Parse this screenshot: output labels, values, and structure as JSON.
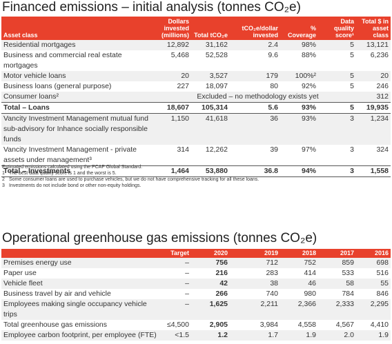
{
  "financed": {
    "title": "Financed emissions – initial analysis (tonnes CO₂e)",
    "columns": [
      "Asset class",
      "Dollars invested (millions)",
      "Total tCO₂e",
      "tCO₂e/dollar invested",
      "% Coverage",
      "Data quality score¹",
      "Total $ in asset class"
    ],
    "sections": [
      {
        "rows": [
          [
            "Residential mortgages",
            "12,892",
            "31,162",
            "2.4",
            "98%",
            "5",
            "13,121"
          ],
          [
            "Business and commercial real estate mortgages",
            "5,468",
            "52,528",
            "9.6",
            "88%",
            "5",
            "6,236"
          ],
          [
            "Motor vehicle loans",
            "20",
            "3,527",
            "179",
            "100%²",
            "5",
            "20"
          ],
          [
            "Business loans (general purpose)",
            "227",
            "18,097",
            "80",
            "92%",
            "5",
            "246"
          ],
          [
            "Consumer loans²",
            "Excluded – no methodology exists yet",
            "312"
          ]
        ],
        "total": [
          "Total – Loans",
          "18,607",
          "105,314",
          "5.6",
          "93%",
          "5",
          "19,935"
        ]
      },
      {
        "rows": [
          [
            "Vancity Investment Management mutual fund sub-advisory for Inhance socially responsible funds",
            "1,150",
            "41,618",
            "36",
            "93%",
            "3",
            "1,234"
          ],
          [
            "Vancity Investment Management - private assets under management³",
            "314",
            "12,262",
            "39",
            "97%",
            "3",
            "324"
          ]
        ],
        "total": [
          "Total – Investments",
          "1,464",
          "53,880",
          "36.8",
          "94%",
          "3",
          "1,558"
        ]
      }
    ]
  },
  "notes": {
    "intro": "Estimated emissions calculated using the PCAF Global Standard.",
    "items": [
      {
        "num": "1",
        "text": "The best data quality score is 1 and the worst is 5."
      },
      {
        "num": "2",
        "text": "Some consumer loans are used to purchase vehicles, but we do not have comprehensive tracking for all these loans."
      },
      {
        "num": "3",
        "text": "Investments do not include bond or other non-equity holdings."
      }
    ]
  },
  "operational": {
    "title": "Operational greenhouse gas emissions (tonnes CO₂e)",
    "columns": [
      "",
      "Target",
      "2020",
      "2019",
      "2018",
      "2017",
      "2016"
    ],
    "rows": [
      [
        "Premises energy use",
        "–",
        "756",
        "712",
        "752",
        "859",
        "698"
      ],
      [
        "Paper use",
        "–",
        "216",
        "283",
        "414",
        "533",
        "516"
      ],
      [
        "Vehicle fleet",
        "–",
        "42",
        "38",
        "46",
        "58",
        "55"
      ],
      [
        "Business travel by air and vehicle",
        "–",
        "266",
        "740",
        "980",
        "784",
        "846"
      ],
      [
        "Employees making single occupancy vehicle trips",
        "–",
        "1,625",
        "2,211",
        "2,366",
        "2,333",
        "2,295"
      ],
      [
        "Total greenhouse gas emissions",
        "≤4,500",
        "2,905",
        "3,984",
        "4,558",
        "4,567",
        "4,410"
      ],
      [
        "Employee carbon footprint, per employee (FTE)",
        "<1.5",
        "1.2",
        "1.7",
        "1.9",
        "2.0",
        "1.9"
      ]
    ]
  }
}
